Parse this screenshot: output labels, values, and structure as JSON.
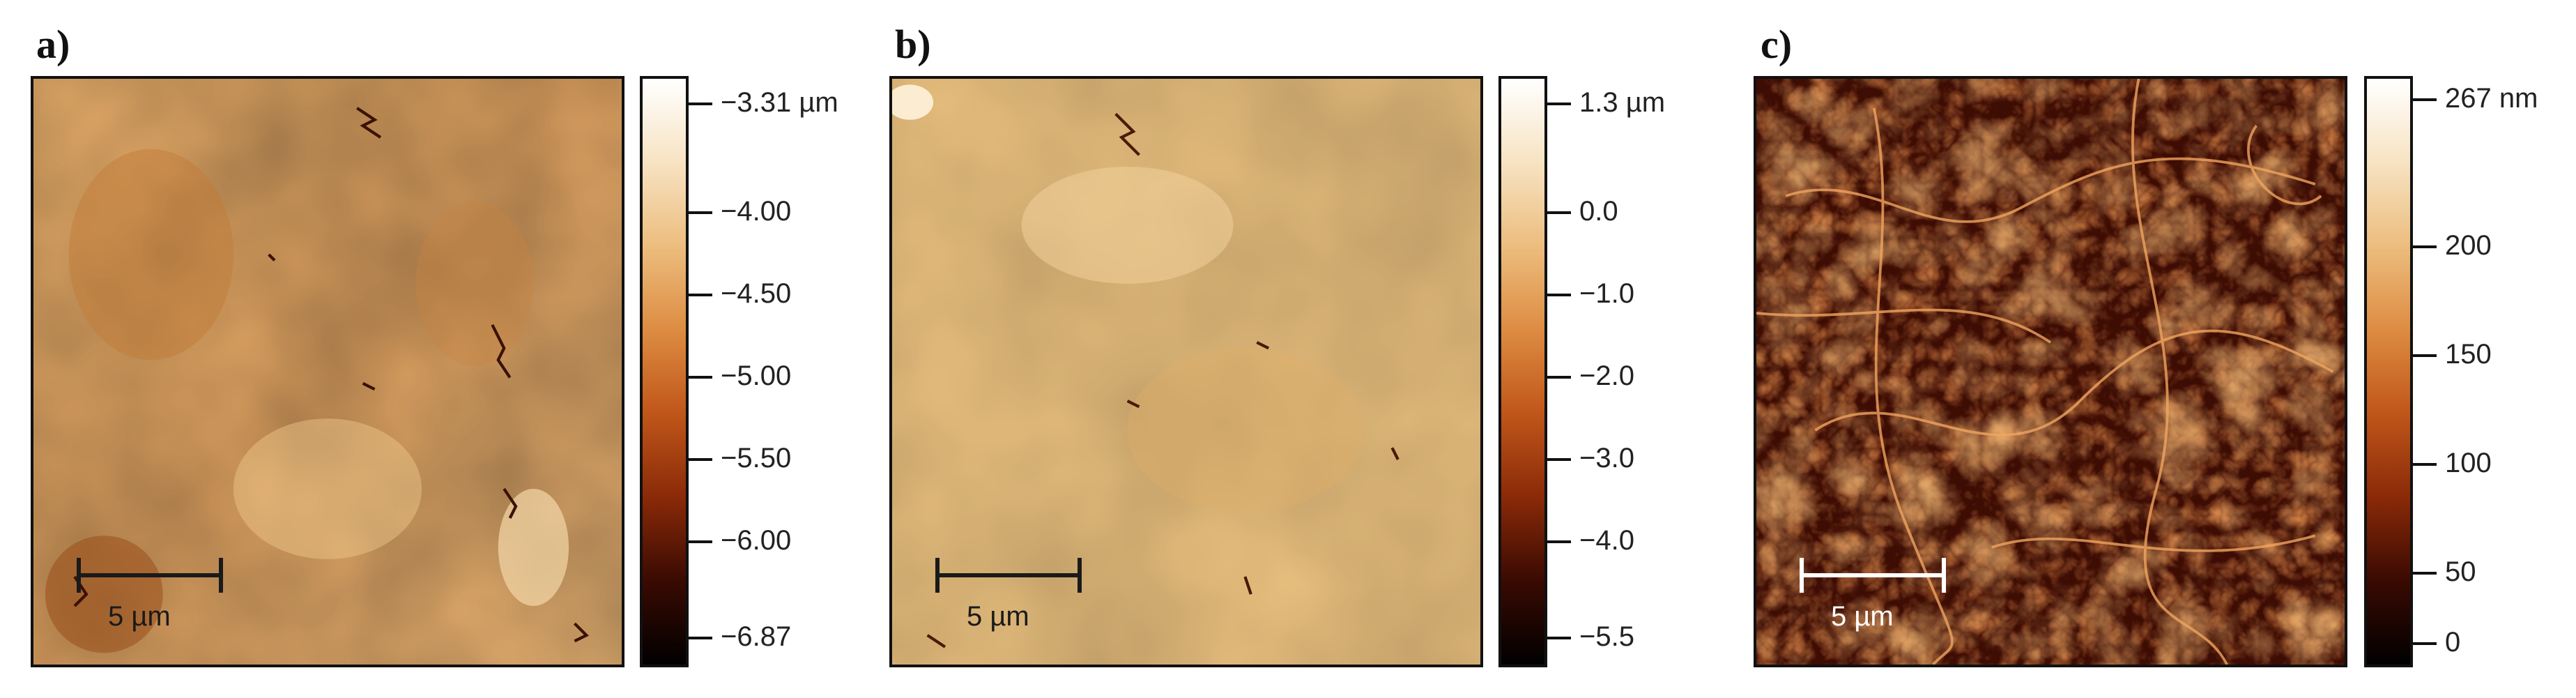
{
  "panels": [
    {
      "label": "a)",
      "scale_bar": "5 µm",
      "colorbar_ticks": [
        "−3.31 µm",
        "−4.00",
        "−4.50",
        "−5.00",
        "−5.50",
        "−6.00",
        "−6.87"
      ],
      "colorbar_tick_values": [
        -3.31,
        -4.0,
        -4.5,
        -5.0,
        -5.5,
        -6.0,
        -6.87
      ],
      "colorbar_range": [
        -6.87,
        -3.31
      ]
    },
    {
      "label": "b)",
      "scale_bar": "5 µm",
      "colorbar_ticks": [
        "1.3 µm",
        "0.0",
        "−1.0",
        "−2.0",
        "−3.0",
        "−4.0",
        "−5.5"
      ],
      "colorbar_tick_values": [
        1.3,
        0.0,
        -1.0,
        -2.0,
        -3.0,
        -4.0,
        -5.5
      ],
      "colorbar_range": [
        -5.5,
        1.3
      ]
    },
    {
      "label": "c)",
      "scale_bar": "5 µm",
      "colorbar_ticks": [
        "267 nm",
        "200",
        "150",
        "100",
        "50",
        "0"
      ],
      "colorbar_tick_values": [
        267,
        200,
        150,
        100,
        50,
        0
      ],
      "colorbar_range": [
        0,
        267
      ]
    }
  ],
  "colors": {
    "colormap": [
      "#000000",
      "#3a0a02",
      "#8a2a08",
      "#c0561a",
      "#dd8c42",
      "#ecbd7e",
      "#f7e3c2",
      "#ffffff"
    ],
    "frame": "#111111"
  }
}
